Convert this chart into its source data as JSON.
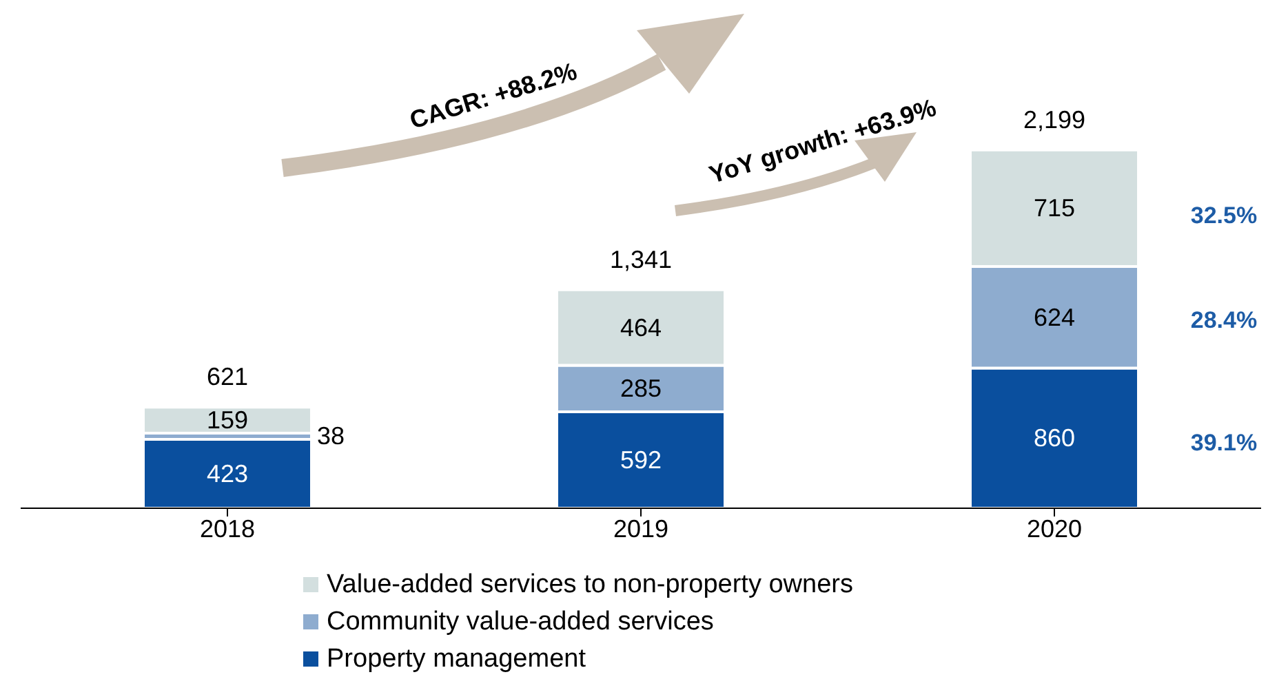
{
  "chart_data": {
    "type": "bar",
    "stacked": true,
    "categories": [
      "2018",
      "2019",
      "2020"
    ],
    "series": [
      {
        "name": "Property management",
        "color": "#0a4f9e",
        "values": [
          423,
          592,
          860
        ]
      },
      {
        "name": "Community value-added services",
        "color": "#8eaccf",
        "values": [
          38,
          285,
          624
        ]
      },
      {
        "name": "Value-added services to non-property owners",
        "color": "#d3dfdf",
        "values": [
          159,
          464,
          715
        ]
      }
    ],
    "totals": [
      "621",
      "1,341",
      "2,199"
    ],
    "data_labels": true,
    "legend": "bottom",
    "annotations": [
      "CAGR: +88.2%",
      "YoY growth: +63.9%",
      "32.5%",
      "28.4%",
      "39.1%"
    ]
  }
}
